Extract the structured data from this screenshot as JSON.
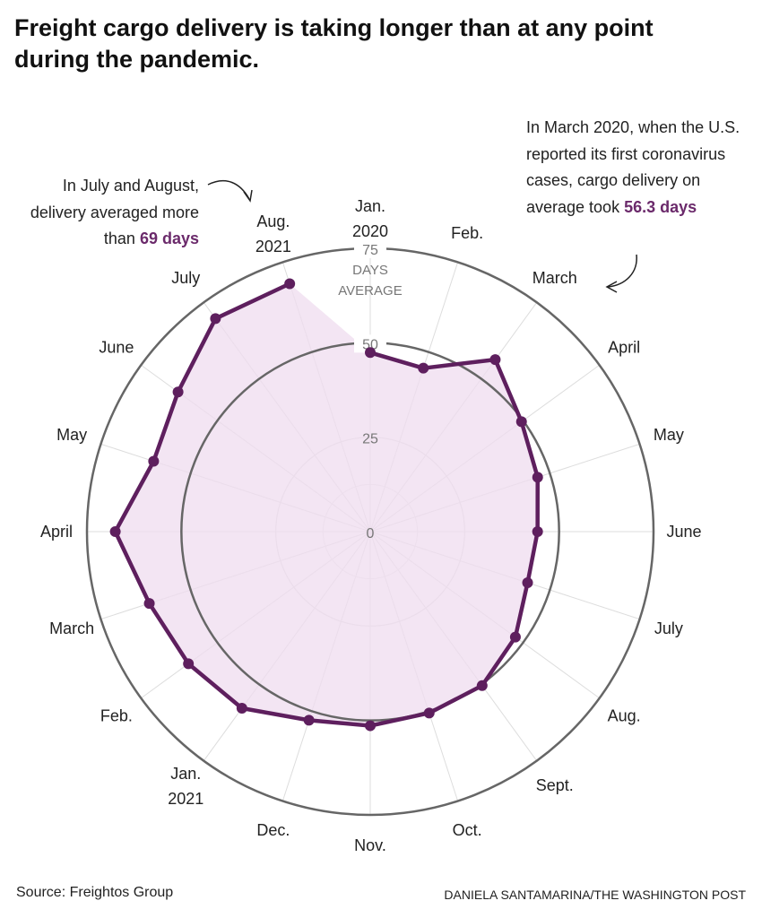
{
  "title": "Freight cargo delivery is taking longer than at any point during the pandemic.",
  "annotation_left": {
    "text": "In July and August, delivery averaged more than ",
    "highlight": "69 days"
  },
  "annotation_right": {
    "text": "In March 2020, when the U.S. reported its first coronavirus cases, cargo delivery on average took ",
    "highlight": "56.3 days"
  },
  "source": "Source: Freightos Group",
  "credit": "DANIELA SANTAMARINA/THE WASHINGTON POST",
  "colors": {
    "line": "#5e1f5e",
    "fill": "#efdcef",
    "accent_text": "#6b2a6b"
  },
  "chart_data": {
    "type": "radar",
    "axis_label": [
      "DAYS",
      "AVERAGE"
    ],
    "rlim": [
      0,
      75
    ],
    "rticks": [
      "0",
      "25",
      "50",
      "75"
    ],
    "categories": [
      [
        "Jan.",
        "2020"
      ],
      [
        "Feb."
      ],
      [
        "March"
      ],
      [
        "April"
      ],
      [
        "May"
      ],
      [
        "June"
      ],
      [
        "July"
      ],
      [
        "Aug."
      ],
      [
        "Sept."
      ],
      [
        "Oct."
      ],
      [
        "Nov."
      ],
      [
        "Dec."
      ],
      [
        "Jan.",
        "2021"
      ],
      [
        "Feb."
      ],
      [
        "March"
      ],
      [
        "April"
      ],
      [
        "May"
      ],
      [
        "June"
      ],
      [
        "July"
      ],
      [
        "Aug.",
        "2021"
      ]
    ],
    "values": [
      47.4,
      45.5,
      56.3,
      49.5,
      46.6,
      44.3,
      43.8,
      47.5,
      50.4,
      50.5,
      51.4,
      52.5,
      57.8,
      59.5,
      61.5,
      67.5,
      60.3,
      62.9,
      69.7,
      69.0
    ]
  }
}
